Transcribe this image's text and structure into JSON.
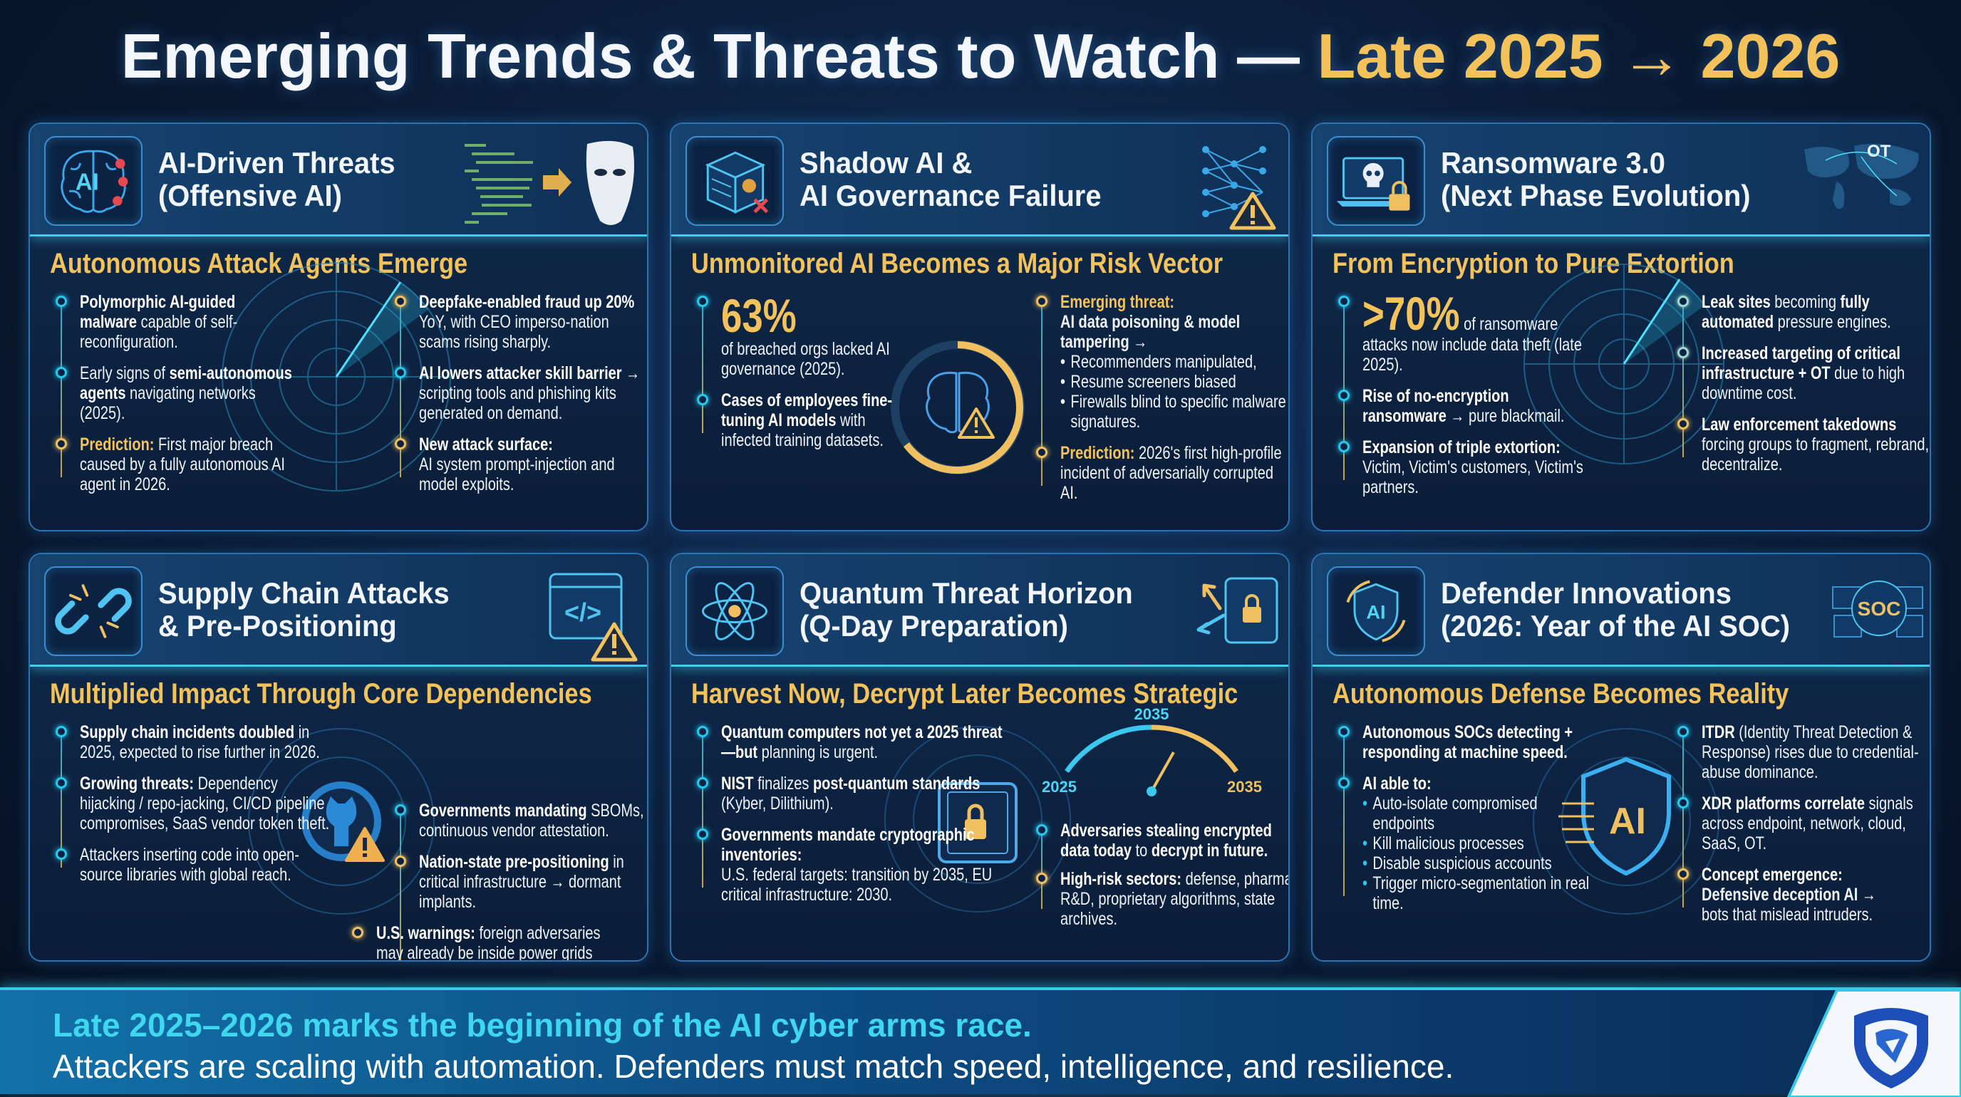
{
  "title": {
    "main": "Emerging Trends & Threats to Watch — ",
    "accent": "Late 2025 → 2026"
  },
  "colors": {
    "background": "#0a1a33",
    "accent_gold": "#f3c25a",
    "accent_cyan": "#27c8ee",
    "panel_border": "#2f72b0"
  },
  "panels": [
    {
      "icon": "brain-ai-icon",
      "icon_label": "AI",
      "title_lines": [
        "AI-Driven Threats",
        "(Offensive AI)"
      ],
      "subtitle": "Autonomous Attack Agents Emerge",
      "left": [
        {
          "dot": "cyan",
          "parts": [
            [
              "b",
              "Polymorphic AI-guided malware"
            ],
            [
              "n",
              " capable of self-reconfiguration."
            ]
          ]
        },
        {
          "dot": "cyan",
          "parts": [
            [
              "n",
              "Early signs of "
            ],
            [
              "b",
              "semi-autonomous agents"
            ],
            [
              "n",
              " navigating networks (2025)."
            ]
          ]
        },
        {
          "dot": "gold",
          "parts": [
            [
              "g",
              "Prediction:"
            ],
            [
              "n",
              " First major breach caused by a fully autonomous AI agent in 2026."
            ]
          ]
        }
      ],
      "right": [
        {
          "dot": "gold",
          "parts": [
            [
              "b",
              "Deepfake-enabled fraud up 20%"
            ],
            [
              "n",
              " YoY, with CEO imperso-nation scams rising sharply."
            ]
          ]
        },
        {
          "dot": "cyan",
          "parts": [
            [
              "b",
              "AI lowers attacker skill barrier"
            ],
            [
              "n",
              " → scripting tools and phishing kits generated on demand."
            ]
          ]
        },
        {
          "dot": "gold",
          "parts": [
            [
              "b",
              "New attack surface:"
            ],
            [
              "nb",
              "AI system prompt-injection and model exploits."
            ]
          ]
        }
      ]
    },
    {
      "icon": "server-bug-icon",
      "title_lines": [
        "Shadow AI &",
        "AI Governance Failure"
      ],
      "subtitle": "Unmonitored AI Becomes a Major Risk Vector",
      "left": [
        {
          "dot": "cyan",
          "parts": [
            [
              "big",
              "63%"
            ],
            [
              "nb",
              "of breached orgs lacked AI governance (2025)."
            ]
          ]
        },
        {
          "dot": "cyan",
          "parts": [
            [
              "b",
              "Cases of employees fine-tuning AI models"
            ],
            [
              "n",
              " with infected training datasets."
            ]
          ]
        }
      ],
      "right": [
        {
          "dot": "gold",
          "parts": [
            [
              "g",
              "Emerging threat:"
            ],
            [
              "bb",
              "AI data poisoning & model tampering →"
            ],
            [
              "li",
              "Recommenders manipulated,"
            ],
            [
              "li",
              "Resume screeners biased"
            ],
            [
              "li",
              "Firewalls blind to specific malware signatures."
            ]
          ]
        },
        {
          "dot": "gold",
          "parts": [
            [
              "g",
              "Prediction:"
            ],
            [
              "n",
              " 2026's first high-profile incident of adversarially corrupted AI."
            ]
          ]
        }
      ]
    },
    {
      "icon": "skull-laptop-lock-icon",
      "map_label": "OT",
      "title_lines": [
        "Ransomware 3.0",
        "(Next Phase Evolution)"
      ],
      "subtitle": "From Encryption to Pure Extortion",
      "left": [
        {
          "dot": "cyan",
          "parts": [
            [
              "bigi",
              ">70%"
            ],
            [
              "n",
              " of ransomware attacks now include data theft (late 2025)."
            ]
          ]
        },
        {
          "dot": "cyan",
          "parts": [
            [
              "b",
              "Rise of no-encryption ransomware"
            ],
            [
              "n",
              " → pure blackmail."
            ]
          ]
        },
        {
          "dot": "cyan",
          "parts": [
            [
              "b",
              "Expansion of triple extortion:"
            ],
            [
              "nb",
              "Victim, Victim's customers, Victim's partners."
            ]
          ]
        }
      ],
      "right": [
        {
          "dot": "pale",
          "parts": [
            [
              "b",
              "Leak sites"
            ],
            [
              "n",
              " becoming "
            ],
            [
              "b",
              "fully automated"
            ],
            [
              "n",
              " pressure engines."
            ]
          ]
        },
        {
          "dot": "pale",
          "parts": [
            [
              "b",
              "Increased targeting of critical infrastructure + OT"
            ],
            [
              "n",
              " due to high downtime cost."
            ]
          ]
        },
        {
          "dot": "gold",
          "parts": [
            [
              "b",
              "Law enforcement takedowns"
            ],
            [
              "n",
              " forcing groups to fragment, rebrand, decentralize."
            ]
          ]
        }
      ]
    },
    {
      "icon": "broken-link-icon",
      "code_label": "</>",
      "title_lines": [
        "Supply Chain Attacks",
        "& Pre-Positioning"
      ],
      "subtitle": "Multiplied Impact Through Core Dependencies",
      "left": [
        {
          "dot": "cyan",
          "parts": [
            [
              "b",
              "Supply chain incidents doubled"
            ],
            [
              "n",
              " in 2025, expected to rise further in 2026."
            ]
          ]
        },
        {
          "dot": "cyan",
          "parts": [
            [
              "b",
              "Growing threats:"
            ],
            [
              "n",
              " Dependency hijacking / repo-jacking, CI/CD pipeline compromises, SaaS vendor token theft."
            ]
          ]
        },
        {
          "dot": "cyan",
          "parts": [
            [
              "n",
              "Attackers inserting code into open-source libraries with global reach."
            ]
          ]
        }
      ],
      "right": [
        {
          "dot": "cyan",
          "parts": [
            [
              "b",
              "Governments mandating"
            ],
            [
              "n",
              " SBOMs, continuous vendor attestation."
            ]
          ]
        },
        {
          "dot": "gold",
          "parts": [
            [
              "b",
              "Nation-state pre-positioning"
            ],
            [
              "n",
              " in critical infrastructure → dormant implants."
            ]
          ]
        },
        {
          "dot": "gold",
          "parts": [
            [
              "b",
              "U.S. warnings:"
            ],
            [
              "n",
              " foreign adversaries may already be inside power grids & pipelines."
            ]
          ]
        }
      ]
    },
    {
      "icon": "atom-icon",
      "title_lines": [
        "Quantum Threat Horizon",
        "(Q-Day Preparation)"
      ],
      "subtitle": "Harvest Now, Decrypt Later Becomes Strategic",
      "gauge": {
        "top": "2035",
        "start": "2025",
        "end": "2035"
      },
      "left": [
        {
          "dot": "cyan",
          "parts": [
            [
              "b",
              "Quantum computers not yet a 2025 threat—but"
            ],
            [
              "n",
              " planning is urgent."
            ]
          ]
        },
        {
          "dot": "cyan",
          "parts": [
            [
              "b",
              "NIST"
            ],
            [
              "n",
              " finalizes "
            ],
            [
              "b",
              "post-quantum standards"
            ],
            [
              "n",
              " (Kyber, Dilithium)."
            ]
          ]
        },
        {
          "dot": "cyan",
          "parts": [
            [
              "b",
              "Governments mandate cryptographic inventories:"
            ],
            [
              "nb",
              "U.S. federal targets: transition by 2035, EU critical infrastructure: 2030."
            ]
          ]
        }
      ],
      "right": [
        {
          "dot": "cyan",
          "parts": [
            [
              "b",
              "Adversaries stealing encrypted data today"
            ],
            [
              "n",
              " to "
            ],
            [
              "b",
              "decrypt in future."
            ]
          ]
        },
        {
          "dot": "gold",
          "parts": [
            [
              "b",
              "High-risk sectors:"
            ],
            [
              "n",
              " defense, pharma, R&D, proprietary algorithms, state archives."
            ]
          ]
        }
      ]
    },
    {
      "icon": "ai-refresh-icon",
      "icon_label": "AI",
      "soc_label": "SOC",
      "shield_label": "AI",
      "title_lines": [
        "Defender Innovations",
        "(2026: Year of the AI SOC)"
      ],
      "subtitle": "Autonomous Defense Becomes Reality",
      "left": [
        {
          "dot": "cyan",
          "parts": [
            [
              "b",
              "Autonomous SOCs detecting + responding at machine speed."
            ]
          ]
        },
        {
          "dot": "cyan",
          "parts": [
            [
              "b",
              "AI able to:"
            ],
            [
              "li",
              "Auto-isolate compromised endpoints"
            ],
            [
              "li",
              "Kill malicious processes"
            ],
            [
              "li",
              "Disable suspicious accounts"
            ],
            [
              "li",
              "Trigger micro-segmentation in real time."
            ]
          ]
        }
      ],
      "right": [
        {
          "dot": "cyan",
          "parts": [
            [
              "b",
              "ITDR"
            ],
            [
              "n",
              " (Identity Threat Detection & Response) rises due to credential-abuse dominance."
            ]
          ]
        },
        {
          "dot": "cyan",
          "parts": [
            [
              "b",
              "XDR platforms correlate"
            ],
            [
              "n",
              " signals across endpoint, network, cloud, SaaS, OT."
            ]
          ]
        },
        {
          "dot": "gold",
          "parts": [
            [
              "b",
              "Concept emergence:"
            ],
            [
              "bb",
              "Defensive deception AI →"
            ],
            [
              "n",
              "bots that mislead intruders."
            ]
          ]
        }
      ]
    }
  ],
  "footer": {
    "line1": "Late 2025–2026 marks the beginning of the AI cyber arms race.",
    "line2": "Attackers are scaling with automation. Defenders must match speed, intelligence, and resilience.",
    "logo": "shield-logo-icon"
  }
}
